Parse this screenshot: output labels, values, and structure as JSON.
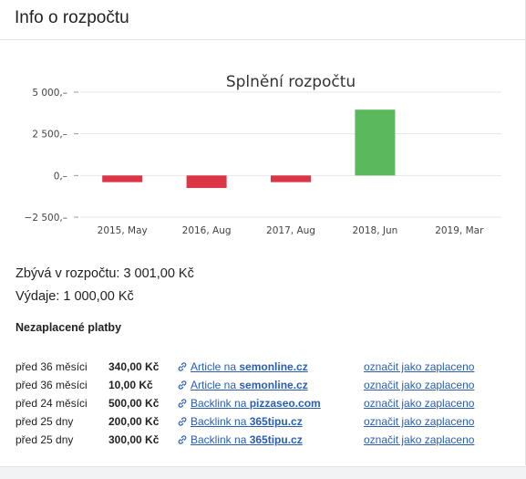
{
  "panel": {
    "title": "Info o rozpočtu"
  },
  "chart_data": {
    "type": "bar",
    "title": "Splnění rozpočtu",
    "categories": [
      "2015, May",
      "2016, Aug",
      "2017, Aug",
      "2018, Jun",
      "2019, Mar"
    ],
    "values": [
      -400,
      -750,
      -400,
      3950,
      null
    ],
    "colors": [
      "#dc3545",
      "#dc3545",
      "#dc3545",
      "#dc3545",
      "#5cb85c"
    ],
    "yticks": [
      5000,
      2500,
      0,
      -2500
    ],
    "ytick_labels": [
      "5 000,–",
      "2 500,–",
      "0,–",
      "−2 500,–"
    ],
    "ylim": [
      -2500,
      5000
    ],
    "grid": true,
    "legend": false
  },
  "summary": {
    "remaining": "Zbývá v rozpočtu: 3 001,00 Kč",
    "expenses": "Výdaje: 1 000,00 Kč"
  },
  "unpaid": {
    "title": "Nezaplacené platby",
    "rows": [
      {
        "time": "před 36 měsíci",
        "amount": "340,00 Kč",
        "link_prefix": "Article na ",
        "link_domain": "semonline.cz",
        "action": "označit jako zaplaceno"
      },
      {
        "time": "před 36 měsíci",
        "amount": "10,00 Kč",
        "link_prefix": "Article na ",
        "link_domain": "semonline.cz",
        "action": "označit jako zaplaceno"
      },
      {
        "time": "před 24 měsíci",
        "amount": "500,00 Kč",
        "link_prefix": "Backlink na ",
        "link_domain": "pizzaseo.com",
        "action": "označit jako zaplaceno"
      },
      {
        "time": "před 25 dny",
        "amount": "200,00 Kč",
        "link_prefix": "Backlink na ",
        "link_domain": "365tipu.cz",
        "action": "označit jako zaplaceno"
      },
      {
        "time": "před 25 dny",
        "amount": "300,00 Kč",
        "link_prefix": "Backlink na ",
        "link_domain": "365tipu.cz",
        "action": "označit jako zaplaceno"
      }
    ]
  }
}
